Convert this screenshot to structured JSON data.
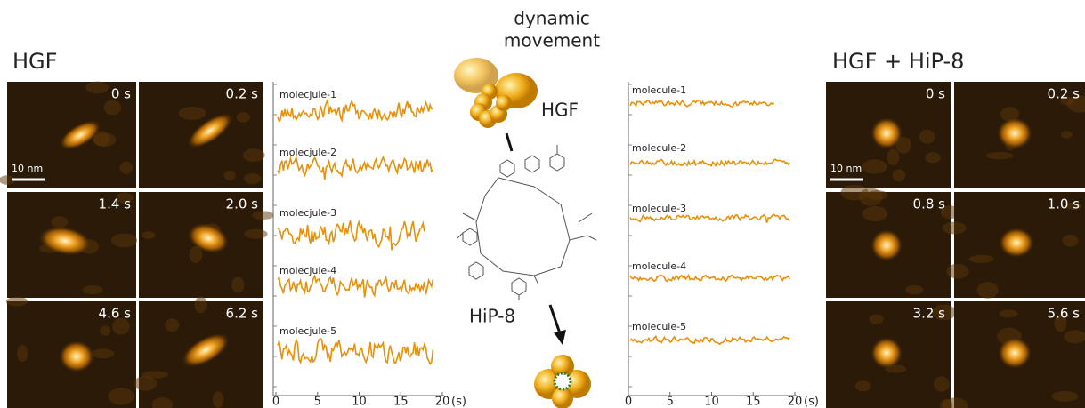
{
  "center": {
    "caption_lines": [
      "dynamic",
      "movement"
    ],
    "protein_label": "HGF",
    "peptide_label": "HiP-8"
  },
  "left": {
    "title": "HGF",
    "scale_bar": "10 nm",
    "frames": [
      "0 s",
      "0.2 s",
      "1.4 s",
      "2.0 s",
      "4.6 s",
      "6.2 s"
    ],
    "traces": [
      "molecjule-1",
      "molecjule-2",
      "molecjule-3",
      "molecjule-4",
      "molecjule-5"
    ],
    "xlim": [
      0,
      20
    ],
    "xticks": [
      0,
      5,
      10,
      15,
      20
    ],
    "x_unit": "(s)"
  },
  "right": {
    "title": "HGF + HiP-8",
    "scale_bar": "10 nm",
    "frames": [
      "0 s",
      "0.2 s",
      "0.8 s",
      "1.0 s",
      "3.2 s",
      "5.6 s"
    ],
    "traces": [
      "molecule-1",
      "molecule-2",
      "molecule-3",
      "molecule-4",
      "molecule-5"
    ],
    "xlim": [
      0,
      20
    ],
    "xticks": [
      0,
      5,
      10,
      15,
      20
    ],
    "x_unit": "(s)"
  }
}
